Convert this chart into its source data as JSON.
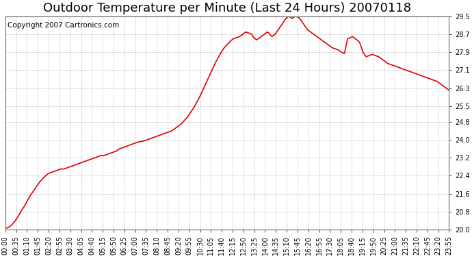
{
  "title": "Outdoor Temperature per Minute (Last 24 Hours) 20070118",
  "copyright_text": "Copyright 2007 Cartronics.com",
  "line_color": "#dd0000",
  "background_color": "#ffffff",
  "plot_bg_color": "#ffffff",
  "grid_color": "#aaaaaa",
  "ylim": [
    20.0,
    29.5
  ],
  "yticks": [
    20.0,
    20.8,
    21.6,
    22.4,
    23.2,
    24.0,
    24.8,
    25.5,
    26.3,
    27.1,
    27.9,
    28.7,
    29.5
  ],
  "title_fontsize": 13,
  "tick_fontsize": 7,
  "copyright_fontsize": 7.5,
  "xtick_labels": [
    "00:00",
    "00:35",
    "01:10",
    "01:45",
    "02:20",
    "02:55",
    "03:30",
    "04:05",
    "04:40",
    "05:15",
    "05:50",
    "06:25",
    "07:00",
    "07:35",
    "08:10",
    "08:45",
    "09:20",
    "09:55",
    "10:30",
    "11:05",
    "11:40",
    "12:15",
    "12:50",
    "13:25",
    "14:00",
    "14:35",
    "15:10",
    "15:45",
    "16:20",
    "16:55",
    "17:30",
    "18:05",
    "18:40",
    "19:15",
    "19:50",
    "20:25",
    "21:00",
    "21:35",
    "22:10",
    "22:45",
    "23:20",
    "23:55"
  ],
  "key_points": [
    [
      0,
      20.05
    ],
    [
      10,
      20.1
    ],
    [
      20,
      20.2
    ],
    [
      30,
      20.35
    ],
    [
      40,
      20.55
    ],
    [
      50,
      20.8
    ],
    [
      60,
      21.0
    ],
    [
      70,
      21.25
    ],
    [
      80,
      21.5
    ],
    [
      90,
      21.7
    ],
    [
      100,
      21.9
    ],
    [
      110,
      22.1
    ],
    [
      120,
      22.25
    ],
    [
      130,
      22.4
    ],
    [
      140,
      22.5
    ],
    [
      150,
      22.55
    ],
    [
      160,
      22.6
    ],
    [
      170,
      22.65
    ],
    [
      180,
      22.7
    ],
    [
      190,
      22.7
    ],
    [
      200,
      22.75
    ],
    [
      210,
      22.8
    ],
    [
      220,
      22.85
    ],
    [
      230,
      22.9
    ],
    [
      240,
      22.95
    ],
    [
      250,
      23.0
    ],
    [
      260,
      23.05
    ],
    [
      270,
      23.1
    ],
    [
      280,
      23.15
    ],
    [
      290,
      23.2
    ],
    [
      300,
      23.25
    ],
    [
      310,
      23.3
    ],
    [
      320,
      23.3
    ],
    [
      330,
      23.35
    ],
    [
      340,
      23.4
    ],
    [
      350,
      23.45
    ],
    [
      360,
      23.5
    ],
    [
      370,
      23.6
    ],
    [
      380,
      23.65
    ],
    [
      390,
      23.7
    ],
    [
      400,
      23.75
    ],
    [
      410,
      23.8
    ],
    [
      420,
      23.85
    ],
    [
      430,
      23.9
    ],
    [
      440,
      23.92
    ],
    [
      450,
      23.95
    ],
    [
      460,
      24.0
    ],
    [
      470,
      24.05
    ],
    [
      480,
      24.1
    ],
    [
      490,
      24.15
    ],
    [
      500,
      24.2
    ],
    [
      510,
      24.25
    ],
    [
      520,
      24.3
    ],
    [
      530,
      24.35
    ],
    [
      540,
      24.4
    ],
    [
      550,
      24.5
    ],
    [
      560,
      24.6
    ],
    [
      570,
      24.7
    ],
    [
      580,
      24.85
    ],
    [
      590,
      25.0
    ],
    [
      600,
      25.2
    ],
    [
      610,
      25.4
    ],
    [
      620,
      25.65
    ],
    [
      630,
      25.9
    ],
    [
      640,
      26.2
    ],
    [
      650,
      26.5
    ],
    [
      660,
      26.8
    ],
    [
      670,
      27.1
    ],
    [
      680,
      27.4
    ],
    [
      690,
      27.65
    ],
    [
      700,
      27.9
    ],
    [
      710,
      28.1
    ],
    [
      720,
      28.25
    ],
    [
      730,
      28.4
    ],
    [
      740,
      28.5
    ],
    [
      750,
      28.55
    ],
    [
      760,
      28.6
    ],
    [
      765,
      28.65
    ],
    [
      770,
      28.7
    ],
    [
      775,
      28.75
    ],
    [
      780,
      28.8
    ],
    [
      790,
      28.75
    ],
    [
      800,
      28.7
    ],
    [
      805,
      28.55
    ],
    [
      810,
      28.5
    ],
    [
      815,
      28.45
    ],
    [
      820,
      28.5
    ],
    [
      825,
      28.55
    ],
    [
      830,
      28.6
    ],
    [
      835,
      28.65
    ],
    [
      840,
      28.7
    ],
    [
      845,
      28.75
    ],
    [
      850,
      28.8
    ],
    [
      855,
      28.75
    ],
    [
      860,
      28.65
    ],
    [
      865,
      28.6
    ],
    [
      870,
      28.65
    ],
    [
      875,
      28.7
    ],
    [
      880,
      28.8
    ],
    [
      885,
      28.9
    ],
    [
      890,
      29.0
    ],
    [
      895,
      29.1
    ],
    [
      900,
      29.2
    ],
    [
      905,
      29.3
    ],
    [
      910,
      29.4
    ],
    [
      915,
      29.45
    ],
    [
      920,
      29.5
    ],
    [
      925,
      29.45
    ],
    [
      930,
      29.4
    ],
    [
      935,
      29.45
    ],
    [
      940,
      29.5
    ],
    [
      945,
      29.48
    ],
    [
      950,
      29.45
    ],
    [
      955,
      29.4
    ],
    [
      960,
      29.3
    ],
    [
      970,
      29.1
    ],
    [
      980,
      28.9
    ],
    [
      990,
      28.8
    ],
    [
      1000,
      28.7
    ],
    [
      1010,
      28.6
    ],
    [
      1020,
      28.5
    ],
    [
      1030,
      28.4
    ],
    [
      1040,
      28.3
    ],
    [
      1050,
      28.2
    ],
    [
      1060,
      28.1
    ],
    [
      1070,
      28.05
    ],
    [
      1080,
      28.0
    ],
    [
      1090,
      27.9
    ],
    [
      1100,
      27.85
    ],
    [
      1110,
      28.5
    ],
    [
      1120,
      28.55
    ],
    [
      1125,
      28.6
    ],
    [
      1130,
      28.55
    ],
    [
      1135,
      28.5
    ],
    [
      1140,
      28.45
    ],
    [
      1145,
      28.4
    ],
    [
      1150,
      28.3
    ],
    [
      1155,
      28.1
    ],
    [
      1160,
      27.9
    ],
    [
      1165,
      27.8
    ],
    [
      1170,
      27.7
    ],
    [
      1180,
      27.75
    ],
    [
      1190,
      27.8
    ],
    [
      1200,
      27.75
    ],
    [
      1210,
      27.7
    ],
    [
      1220,
      27.6
    ],
    [
      1230,
      27.5
    ],
    [
      1240,
      27.4
    ],
    [
      1250,
      27.35
    ],
    [
      1260,
      27.3
    ],
    [
      1270,
      27.25
    ],
    [
      1280,
      27.2
    ],
    [
      1290,
      27.15
    ],
    [
      1300,
      27.1
    ],
    [
      1310,
      27.05
    ],
    [
      1320,
      27.0
    ],
    [
      1330,
      26.95
    ],
    [
      1340,
      26.9
    ],
    [
      1350,
      26.85
    ],
    [
      1360,
      26.8
    ],
    [
      1370,
      26.75
    ],
    [
      1380,
      26.7
    ],
    [
      1390,
      26.65
    ],
    [
      1400,
      26.6
    ],
    [
      1410,
      26.5
    ],
    [
      1420,
      26.4
    ],
    [
      1430,
      26.3
    ],
    [
      1439,
      26.2
    ]
  ]
}
